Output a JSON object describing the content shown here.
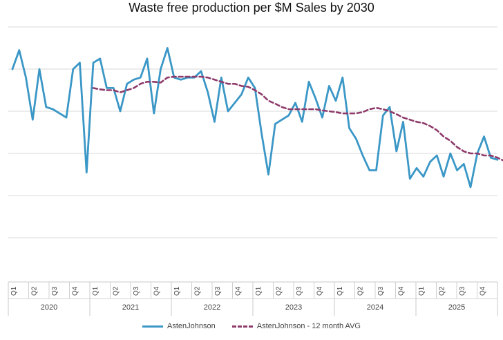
{
  "chart_data": {
    "type": "line",
    "title": "Waste free production per $M Sales by 2030",
    "y_gridlines": 6,
    "grid": true,
    "legend_position": "bottom",
    "years": [
      "2020",
      "2021",
      "2022",
      "2023",
      "2024",
      "2025"
    ],
    "quarters": [
      "Q1",
      "Q2",
      "Q3",
      "Q4"
    ],
    "series": [
      {
        "name": "AstenJohnson",
        "color": "#3a97c6",
        "style": "solid",
        "values": [
          5.0,
          5.45,
          4.8,
          3.8,
          5.0,
          4.1,
          4.05,
          3.95,
          3.85,
          5.0,
          5.15,
          2.55,
          5.15,
          5.25,
          4.55,
          4.55,
          4.0,
          4.65,
          4.75,
          4.8,
          5.25,
          3.95,
          5.0,
          5.5,
          4.8,
          4.75,
          4.8,
          4.8,
          4.95,
          4.45,
          3.75,
          4.8,
          4.0,
          4.2,
          4.4,
          4.8,
          4.55,
          3.45,
          2.5,
          3.7,
          3.8,
          3.9,
          4.2,
          3.75,
          4.7,
          4.3,
          3.85,
          4.6,
          4.25,
          4.8,
          3.6,
          3.35,
          2.95,
          2.6,
          2.6,
          3.9,
          4.1,
          3.05,
          3.75,
          2.4,
          2.65,
          2.45,
          2.8,
          2.95,
          2.45,
          3.0,
          2.6,
          2.75,
          2.2,
          3.0,
          3.4,
          2.9,
          2.85
        ]
      },
      {
        "name": "AstenJohnson - 12 month AVG",
        "color": "#8e3b6b",
        "style": "dashed",
        "start_index": 12,
        "values": [
          4.55,
          4.52,
          4.5,
          4.5,
          4.45,
          4.5,
          4.55,
          4.65,
          4.7,
          4.7,
          4.68,
          4.8,
          4.82,
          4.82,
          4.82,
          4.82,
          4.82,
          4.8,
          4.75,
          4.7,
          4.65,
          4.65,
          4.6,
          4.58,
          4.5,
          4.4,
          4.25,
          4.18,
          4.1,
          4.05,
          4.05,
          4.05,
          4.05,
          4.05,
          4.02,
          4.0,
          3.98,
          3.95,
          3.95,
          3.95,
          3.98,
          4.05,
          4.08,
          4.05,
          4.0,
          3.93,
          3.85,
          3.8,
          3.75,
          3.72,
          3.65,
          3.55,
          3.4,
          3.3,
          3.15,
          3.05,
          3.0,
          3.0,
          2.95,
          2.95,
          2.9,
          2.82,
          2.75,
          2.75,
          2.78,
          2.83,
          2.85
        ]
      }
    ]
  }
}
